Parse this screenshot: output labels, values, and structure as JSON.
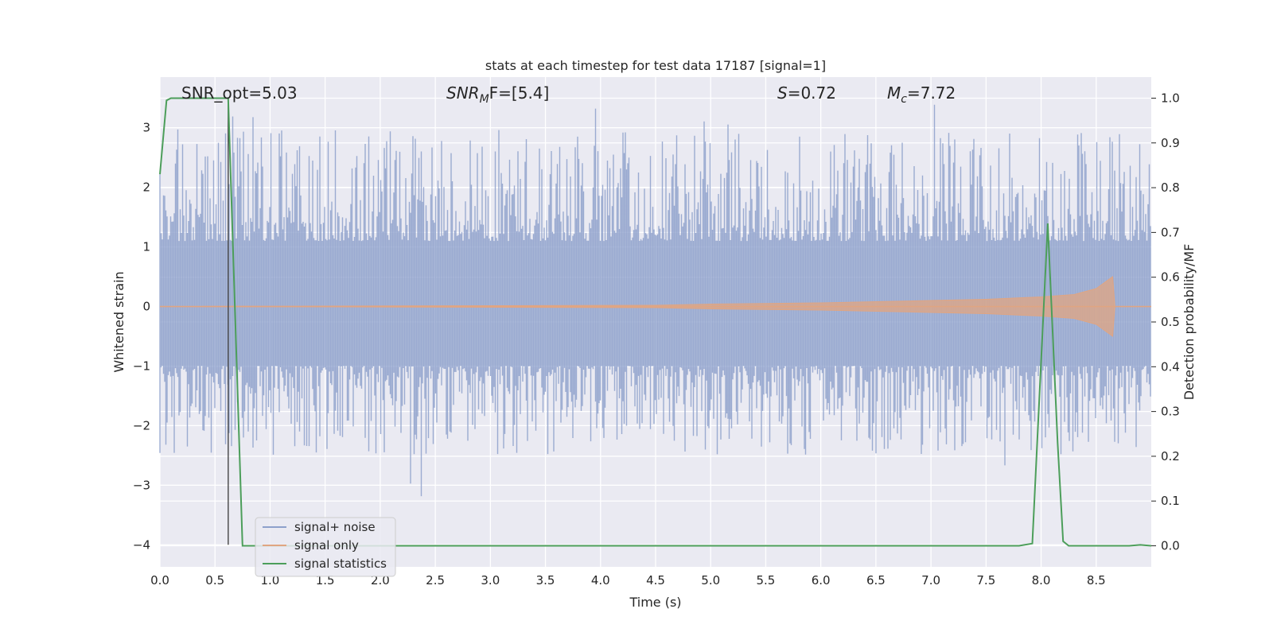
{
  "chart_data": {
    "type": "line",
    "title": "stats at each timestep for test data 17187 [signal=1]",
    "xlabel": "Time (s)",
    "ylabel_left": "Whitened strain",
    "ylabel_right": "Detection probability/MF",
    "xlim": [
      0.0,
      9.0
    ],
    "ylim_left": [
      -4.37,
      3.85
    ],
    "ylim_right": [
      -0.047,
      1.047
    ],
    "x_ticks": [
      "0.0",
      "0.5",
      "1.0",
      "1.5",
      "2.0",
      "2.5",
      "3.0",
      "3.5",
      "4.0",
      "4.5",
      "5.0",
      "5.5",
      "6.0",
      "6.5",
      "7.0",
      "7.5",
      "8.0",
      "8.5"
    ],
    "y_left_ticks": [
      "3",
      "2",
      "1",
      "0",
      "−1",
      "−2",
      "−3",
      "−4"
    ],
    "y_right_ticks": [
      "1.0",
      "0.9",
      "0.8",
      "0.7",
      "0.6",
      "0.5",
      "0.4",
      "0.3",
      "0.2",
      "0.1",
      "0.0"
    ],
    "grid": true,
    "legend_position": "lower-left",
    "annotations": {
      "snr_opt": "SNR_opt=5.03",
      "snr_mf_main": "SNR",
      "snr_mf_sub": "M",
      "snr_mf_tail": "F=[5.4]",
      "s_var": "S",
      "s_val": "=0.72",
      "mc_var": "M",
      "mc_sub": "c",
      "mc_val": "=7.72"
    },
    "vline_x": 0.62,
    "series": [
      {
        "name": "signal+ noise",
        "color": "#8da0cb",
        "axis": "left",
        "description": "dense noisy strain, values roughly between -2.5 and 3.5"
      },
      {
        "name": "signal only",
        "color": "#e0a582",
        "axis": "left",
        "x": [
          0.0,
          4.5,
          5.0,
          5.5,
          6.0,
          6.5,
          7.0,
          7.5,
          8.0,
          8.3,
          8.5,
          8.65,
          8.67,
          9.0
        ],
        "amplitude": [
          0.0,
          0.02,
          0.04,
          0.05,
          0.06,
          0.08,
          0.1,
          0.12,
          0.16,
          0.2,
          0.3,
          0.5,
          0.0,
          0.0
        ]
      },
      {
        "name": "signal statistics",
        "color": "#4c9e5a",
        "axis": "right",
        "x": [
          0.0,
          0.06,
          0.1,
          0.2,
          0.4,
          0.6,
          0.62,
          0.75,
          1.0,
          2.0,
          3.0,
          4.0,
          5.0,
          6.0,
          7.0,
          7.8,
          7.92,
          8.06,
          8.15,
          8.2,
          8.25,
          8.5,
          8.8,
          8.9,
          9.0
        ],
        "y": [
          0.83,
          0.995,
          1.0,
          1.0,
          1.0,
          1.0,
          1.0,
          0.0,
          0.0,
          0.0,
          0.0,
          0.0,
          0.0,
          0.0,
          0.0,
          0.0,
          0.005,
          0.72,
          0.23,
          0.01,
          0.0,
          0.0,
          0.0,
          0.002,
          0.0
        ]
      }
    ]
  }
}
